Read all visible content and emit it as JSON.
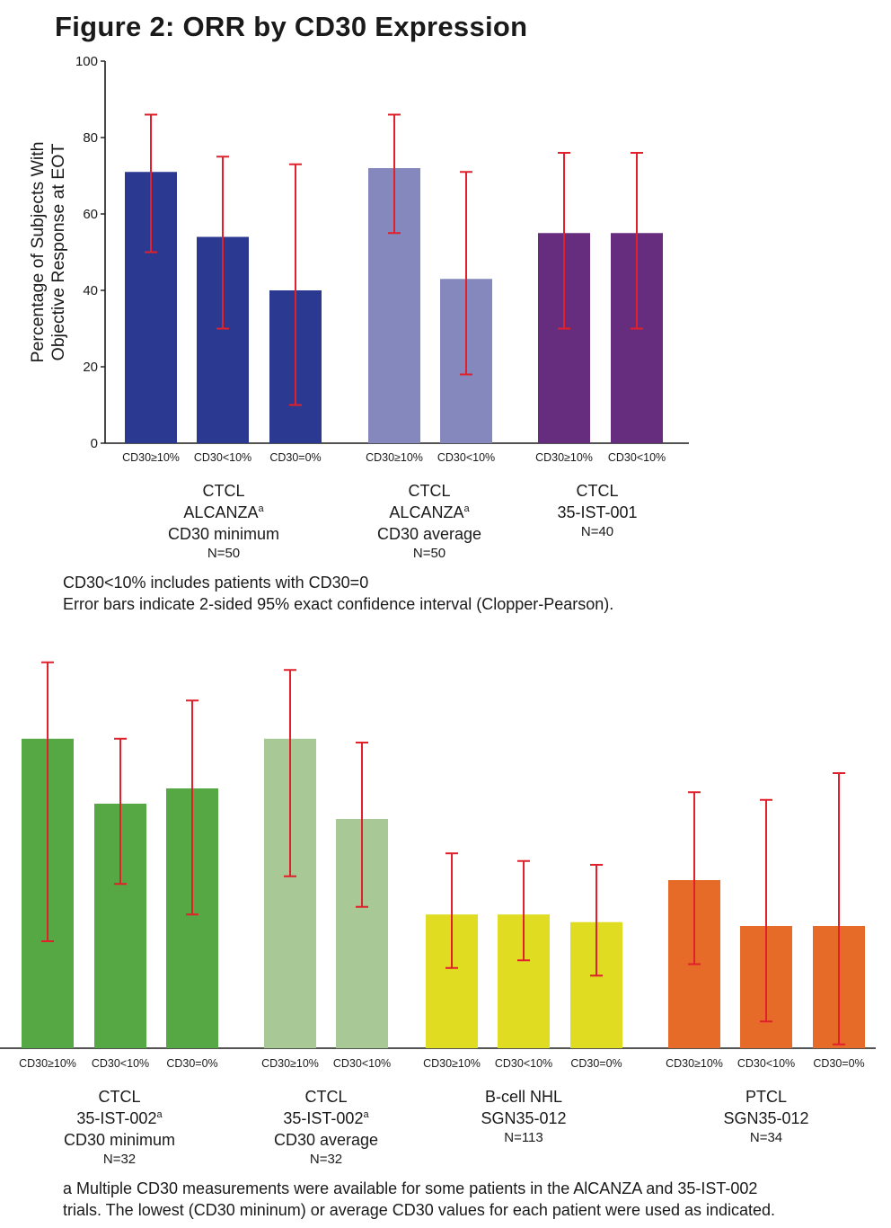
{
  "title": "Figure 2: ORR by CD30 Expression",
  "notes": {
    "line1": "CD30<10% includes patients with CD30=0",
    "line2": "Error bars indicate 2-sided 95% exact confidence interval (Clopper-Pearson)."
  },
  "footnote": {
    "line1": "a Multiple CD30 measurements were available for some patients in the AlCANZA and 35-IST-002",
    "line2": "trials. The lowest (CD30 mininum) or average CD30 values for each patient were used as indicated."
  },
  "chart_data": [
    {
      "type": "bar",
      "title": "Figure 2: ORR by CD30 Expression",
      "xlabel": "",
      "ylabel": "Percentage of Subjects With Objective Response at EOT",
      "ylim": [
        0,
        100
      ],
      "yticks": [
        "0",
        "20",
        "40",
        "60",
        "80",
        "100"
      ],
      "groups": [
        {
          "labels": [
            "CTCL",
            "ALCANZA",
            "CD30 minimum"
          ],
          "sup": "a",
          "n": "N=50",
          "color": "#2b3990",
          "bars": [
            {
              "category": "CD30≥10%",
              "value": 71,
              "ci": [
                50,
                86
              ]
            },
            {
              "category": "CD30<10%",
              "value": 54,
              "ci": [
                30,
                75
              ]
            },
            {
              "category": "CD30=0%",
              "value": 40,
              "ci": [
                10,
                73
              ]
            }
          ]
        },
        {
          "labels": [
            "CTCL",
            "ALCANZA",
            "CD30 average"
          ],
          "sup": "a",
          "n": "N=50",
          "color": "#8588bd",
          "bars": [
            {
              "category": "CD30≥10%",
              "value": 72,
              "ci": [
                55,
                86
              ]
            },
            {
              "category": "CD30<10%",
              "value": 43,
              "ci": [
                18,
                71
              ]
            }
          ]
        },
        {
          "labels": [
            "CTCL",
            "35-IST-001"
          ],
          "sup": "",
          "n": "N=40",
          "color": "#662d7e",
          "bars": [
            {
              "category": "CD30≥10%",
              "value": 55,
              "ci": [
                30,
                76
              ]
            },
            {
              "category": "CD30<10%",
              "value": 55,
              "ci": [
                30,
                76
              ]
            }
          ]
        }
      ]
    },
    {
      "type": "bar",
      "title": "",
      "xlabel": "",
      "ylabel": "",
      "ylim": [
        0,
        100
      ],
      "groups": [
        {
          "labels": [
            "CTCL",
            "35-IST-002",
            "CD30 minimum"
          ],
          "sup": "a",
          "n": "N=32",
          "color": "#56a845",
          "bars": [
            {
              "category": "CD30≥10%",
              "value": 81,
              "ci": [
                28,
                101
              ]
            },
            {
              "category": "CD30<10%",
              "value": 64,
              "ci": [
                43,
                81
              ]
            },
            {
              "category": "CD30=0%",
              "value": 68,
              "ci": [
                35,
                91
              ]
            }
          ]
        },
        {
          "labels": [
            "CTCL",
            "35-IST-002",
            "CD30 average"
          ],
          "sup": "a",
          "n": "N=32",
          "color": "#a8c896",
          "bars": [
            {
              "category": "CD30≥10%",
              "value": 81,
              "ci": [
                45,
                99
              ]
            },
            {
              "category": "CD30<10%",
              "value": 60,
              "ci": [
                37,
                80
              ]
            }
          ]
        },
        {
          "labels": [
            "B-cell NHL",
            "SGN35-012"
          ],
          "sup": "",
          "n": "N=113",
          "color": "#dfdc22",
          "bars": [
            {
              "category": "CD30≥10%",
              "value": 35,
              "ci": [
                21,
                51
              ]
            },
            {
              "category": "CD30<10%",
              "value": 35,
              "ci": [
                23,
                49
              ]
            },
            {
              "category": "CD30=0%",
              "value": 33,
              "ci": [
                19,
                48
              ]
            }
          ]
        },
        {
          "labels": [
            "PTCL",
            "SGN35-012"
          ],
          "sup": "",
          "n": "N=34",
          "color": "#e66a28",
          "bars": [
            {
              "category": "CD30≥10%",
              "value": 44,
              "ci": [
                22,
                67
              ]
            },
            {
              "category": "CD30<10%",
              "value": 32,
              "ci": [
                7,
                65
              ]
            },
            {
              "category": "CD30=0%",
              "value": 32,
              "ci": [
                1,
                72
              ]
            }
          ]
        }
      ]
    }
  ]
}
